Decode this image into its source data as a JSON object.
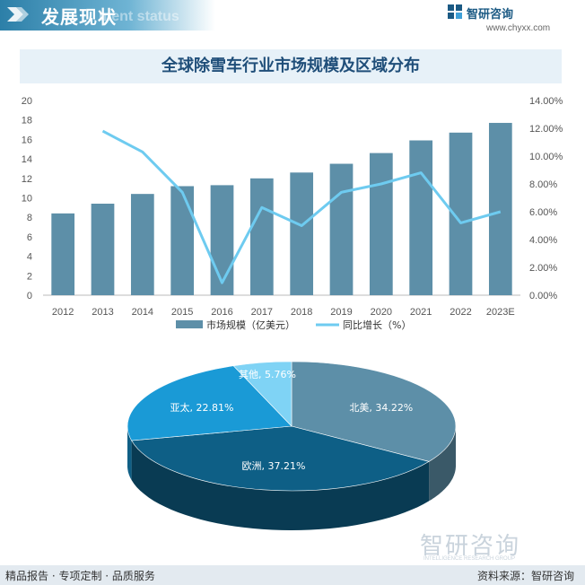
{
  "header": {
    "title": "发展现状",
    "subtitle": "ment status"
  },
  "brand": {
    "name": "智研咨询",
    "url": "www.chyxx.com"
  },
  "colors": {
    "bar": "#5d8fa8",
    "line": "#6ecbf0",
    "pie_north_america": "#5d8fa8",
    "pie_europe": "#0e5f86",
    "pie_asia_pacific": "#1a9ad6",
    "pie_other": "#7fd3f5",
    "title_bg": "#e7f1f8",
    "header_blue": "#2c7fa8"
  },
  "chart_data": [
    {
      "type": "bar",
      "title": "全球除雪车行业市场规模及区域分布",
      "categories": [
        "2012",
        "2013",
        "2014",
        "2015",
        "2016",
        "2017",
        "2018",
        "2019",
        "2020",
        "2021",
        "2022",
        "2023E"
      ],
      "series": [
        {
          "name": "市场规模（亿美元）",
          "type": "bar",
          "axis": "left",
          "values": [
            8.4,
            9.4,
            10.4,
            11.2,
            11.3,
            12.0,
            12.6,
            13.5,
            14.6,
            15.9,
            16.7,
            17.7
          ]
        },
        {
          "name": "同比增长（%）",
          "type": "line",
          "axis": "right",
          "values": [
            null,
            11.8,
            10.3,
            7.4,
            0.9,
            6.3,
            5.0,
            7.4,
            8.0,
            8.8,
            5.2,
            6.0
          ]
        }
      ],
      "ylim": [
        0,
        20
      ],
      "y_ticks": [
        "0",
        "2",
        "4",
        "6",
        "8",
        "10",
        "12",
        "14",
        "16",
        "18",
        "20"
      ],
      "y2lim": [
        0,
        14
      ],
      "y2_ticks": [
        "0.00%",
        "2.00%",
        "4.00%",
        "6.00%",
        "8.00%",
        "10.00%",
        "12.00%",
        "14.00%"
      ],
      "legend_position": "bottom",
      "grid": false
    },
    {
      "type": "pie",
      "style": "3d",
      "slices": [
        {
          "label": "北美, 34.22%",
          "name": "北美",
          "value": 34.22
        },
        {
          "label": "欧洲, 37.21%",
          "name": "欧洲",
          "value": 37.21
        },
        {
          "label": "亚太, 22.81%",
          "name": "亚太",
          "value": 22.81
        },
        {
          "label": "其他, 5.76%",
          "name": "其他",
          "value": 5.76
        }
      ]
    }
  ],
  "footer": {
    "left": "精品报告 · 专项定制 · 品质服务",
    "right": "资料来源：智研咨询"
  },
  "watermark": {
    "text": "智研咨询",
    "sub": "INTELLIGENCE RESEARCH GROUP"
  }
}
